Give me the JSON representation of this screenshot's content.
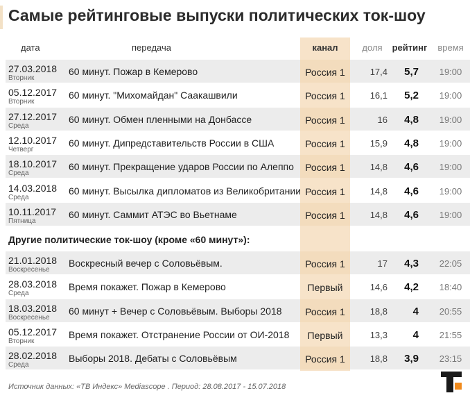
{
  "title": "Самые рейтинговые выпуски политических ток-шоу",
  "columns": {
    "date": "дата",
    "show": "передача",
    "channel": "канал",
    "share": "доля",
    "rating": "рейтинг",
    "time": "время"
  },
  "section_heading": "Другие политические ток-шоу (кроме «60 минут»):",
  "source": "Источник данных: «ТВ Индекс» Mediascope . Период: 28.08.2017 - 15.07.2018",
  "colors": {
    "channel_column": "#f7e3c9",
    "row_shade": "#ececec",
    "title_accent": "#f3e1c6"
  },
  "chart_data": {
    "type": "table",
    "columns": [
      "дата",
      "передача",
      "канал",
      "доля",
      "рейтинг",
      "время"
    ],
    "groups": [
      {
        "heading": "",
        "rows": [
          {
            "date": "27.03.2018",
            "day": "Вторник",
            "show": "60 минут. Пожар в Кемерово",
            "channel": "Россия 1",
            "share": "17,4",
            "rating": "5,7",
            "time": "19:00"
          },
          {
            "date": "05.12.2017",
            "day": "Вторник",
            "show": "60 минут. \"Михомайдан\" Саакашвили",
            "channel": "Россия 1",
            "share": "16,1",
            "rating": "5,2",
            "time": "19:00"
          },
          {
            "date": "27.12.2017",
            "day": "Среда",
            "show": "60 минут. Обмен пленными на Донбассе",
            "channel": "Россия 1",
            "share": "16",
            "rating": "4,8",
            "time": "19:00"
          },
          {
            "date": "12.10.2017",
            "day": "Четверг",
            "show": "60 минут. Дипредставительств России в США",
            "channel": "Россия 1",
            "share": "15,9",
            "rating": "4,8",
            "time": "19:00"
          },
          {
            "date": "18.10.2017",
            "day": "Среда",
            "show": "60 минут. Прекращение ударов России по Алеппо",
            "channel": "Россия 1",
            "share": "14,8",
            "rating": "4,6",
            "time": "19:00"
          },
          {
            "date": "14.03.2018",
            "day": "Среда",
            "show": "60 минут. Высылка дипломатов из Великобритании",
            "channel": "Россия 1",
            "share": "14,8",
            "rating": "4,6",
            "time": "19:00"
          },
          {
            "date": "10.11.2017",
            "day": "Пятница",
            "show": "60 минут. Саммит АТЭС во Вьетнаме",
            "channel": "Россия 1",
            "share": "14,8",
            "rating": "4,6",
            "time": "19:00"
          }
        ]
      },
      {
        "heading": "Другие политические ток-шоу (кроме «60 минут»):",
        "rows": [
          {
            "date": "21.01.2018",
            "day": "Воскресенье",
            "show": "Воскресный вечер с Соловьёвым.",
            "channel": "Россия 1",
            "share": "17",
            "rating": "4,3",
            "time": "22:05"
          },
          {
            "date": "28.03.2018",
            "day": "Среда",
            "show": "Время покажет. Пожар в Кемерово",
            "channel": "Первый",
            "share": "14,6",
            "rating": "4,2",
            "time": "18:40"
          },
          {
            "date": "18.03.2018",
            "day": "Воскресенье",
            "show": "60 минут + Вечер с Соловьёвым. Выборы 2018",
            "channel": "Россия 1",
            "share": "18,8",
            "rating": "4",
            "time": "20:55"
          },
          {
            "date": "05.12.2017",
            "day": "Вторник",
            "show": "Время покажет. Отстранение России от ОИ-2018",
            "channel": "Первый",
            "share": "13,3",
            "rating": "4",
            "time": "21:55"
          },
          {
            "date": "28.02.2018",
            "day": "Среда",
            "show": "Выборы 2018. Дебаты с Соловьёвым",
            "channel": "Россия 1",
            "share": "18,8",
            "rating": "3,9",
            "time": "23:15"
          }
        ]
      }
    ]
  }
}
